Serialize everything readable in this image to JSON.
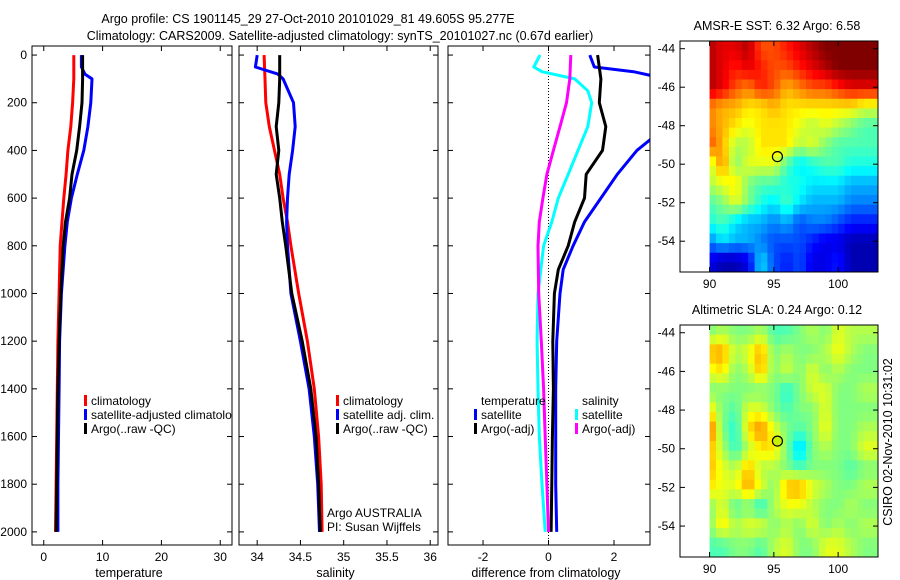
{
  "titles": {
    "line1": "Argo profile: CS 1901145_29 27-Oct-2010 20101029_81 49.605S 95.277E",
    "line2": "Climatology: CARS2009. Satellite-adjusted climatology: synTS_20101027.nc (0.67d earlier)"
  },
  "footer": "CSIRO 02-Nov-2010 10:31:02",
  "colors": {
    "red": "#ff0000",
    "blue": "#0000ff",
    "black": "#000000",
    "cyan": "#00ffff",
    "magenta": "#ff00ff"
  },
  "chart_data": [
    {
      "type": "line",
      "xlabel": "temperature",
      "xlim": [
        -2,
        32
      ],
      "xticks": [
        0,
        10,
        20,
        30
      ],
      "ylim": [
        2055,
        -38
      ],
      "yticks": [
        0,
        200,
        400,
        600,
        800,
        1000,
        1200,
        1400,
        1600,
        1800,
        2000
      ],
      "show_ytick_labels": true,
      "series": [
        {
          "name": "climatology",
          "color": "#ff0000",
          "depth": [
            0,
            100,
            200,
            300,
            400,
            500,
            600,
            700,
            800,
            1000,
            1200,
            1400,
            1600,
            1800,
            2000
          ],
          "values": [
            5.1,
            5.1,
            4.9,
            4.6,
            4.1,
            3.8,
            3.4,
            3.1,
            2.8,
            2.6,
            2.4,
            2.3,
            2.2,
            2.1,
            2.0
          ]
        },
        {
          "name": "satellite-adjusted climatology",
          "color": "#0000ff",
          "depth": [
            0,
            50,
            80,
            100,
            200,
            300,
            400,
            500,
            600,
            700,
            800,
            1000,
            1200,
            1400,
            1600,
            1800,
            2000
          ],
          "values": [
            6.4,
            6.4,
            7.0,
            8.2,
            8.0,
            7.5,
            6.8,
            5.7,
            4.7,
            4.0,
            3.6,
            3.0,
            2.7,
            2.6,
            2.5,
            2.4,
            2.4
          ]
        },
        {
          "name": "Argo(..raw -QC)",
          "color": "#000000",
          "depth": [
            0,
            100,
            200,
            300,
            400,
            500,
            600,
            700,
            800,
            1000,
            1200,
            1400,
            1600,
            1800,
            2000
          ],
          "values": [
            6.6,
            6.6,
            6.5,
            6.1,
            5.6,
            4.8,
            4.4,
            3.7,
            3.3,
            2.9,
            2.6,
            2.4,
            2.3,
            2.2,
            2.1
          ]
        }
      ],
      "legend": {
        "groups": [
          {
            "heading": "",
            "entries": [
              {
                "label": "climatology",
                "color": "#ff0000"
              },
              {
                "label": "satellite-adjusted climatolo",
                "color": "#0000ff"
              },
              {
                "label": "Argo(..raw -QC)",
                "color": "#000000"
              }
            ]
          }
        ]
      },
      "annotations": []
    },
    {
      "type": "line",
      "xlabel": "salinity",
      "xlim": [
        33.79,
        36.09
      ],
      "xticks": [
        34,
        34.5,
        35,
        35.5,
        36
      ],
      "ylim": [
        2055,
        -38
      ],
      "yticks": [
        0,
        200,
        400,
        600,
        800,
        1000,
        1200,
        1400,
        1600,
        1800,
        2000
      ],
      "show_ytick_labels": false,
      "series": [
        {
          "name": "climatology",
          "color": "#ff0000",
          "depth": [
            0,
            100,
            200,
            300,
            400,
            500,
            600,
            700,
            800,
            1000,
            1200,
            1400,
            1600,
            1800,
            2000
          ],
          "values": [
            34.08,
            34.09,
            34.1,
            34.14,
            34.2,
            34.26,
            34.3,
            34.35,
            34.39,
            34.48,
            34.58,
            34.66,
            34.71,
            34.74,
            34.75
          ]
        },
        {
          "name": "satellite adj. clim.",
          "color": "#0000ff",
          "depth": [
            0,
            50,
            80,
            100,
            200,
            300,
            400,
            500,
            600,
            700,
            800,
            1000,
            1200,
            1400,
            1600,
            1800,
            2000
          ],
          "values": [
            34.0,
            33.98,
            34.24,
            34.3,
            34.42,
            34.44,
            34.41,
            34.37,
            34.35,
            34.34,
            34.35,
            34.39,
            34.5,
            34.6,
            34.66,
            34.7,
            34.72
          ]
        },
        {
          "name": "Argo(..raw -QC)",
          "color": "#000000",
          "depth": [
            0,
            100,
            200,
            300,
            400,
            500,
            600,
            700,
            800,
            1000,
            1200,
            1400,
            1600,
            1800,
            2000
          ],
          "values": [
            34.26,
            34.26,
            34.25,
            34.22,
            34.25,
            34.22,
            34.26,
            34.29,
            34.33,
            34.4,
            34.52,
            34.62,
            34.68,
            34.71,
            34.73
          ]
        }
      ],
      "legend": {
        "groups": [
          {
            "heading": "",
            "entries": [
              {
                "label": "climatology",
                "color": "#ff0000"
              },
              {
                "label": "satellite adj. clim.",
                "color": "#0000ff"
              },
              {
                "label": "Argo(..raw -QC)",
                "color": "#000000"
              }
            ]
          }
        ]
      },
      "annotations": [
        "Argo AUSTRALIA",
        "PI: Susan Wijffels"
      ]
    },
    {
      "type": "line",
      "xlabel": "difference from climatology",
      "xlim": [
        -3.07,
        3.1
      ],
      "xticks": [
        -2,
        0,
        2
      ],
      "ylim": [
        2055,
        -38
      ],
      "yticks": [
        0,
        200,
        400,
        600,
        800,
        1000,
        1200,
        1400,
        1600,
        1800,
        2000
      ],
      "show_ytick_labels": false,
      "zero_line": true,
      "series": [
        {
          "name": "temperature satellite",
          "color": "#0000ff",
          "depth": [
            0,
            50,
            70,
            100,
            200,
            300,
            400,
            500,
            600,
            700,
            800,
            900,
            1000,
            1200,
            1400,
            1600,
            1800,
            2000
          ],
          "values": [
            1.26,
            1.4,
            2.6,
            3.6,
            4.0,
            3.6,
            2.7,
            2.1,
            1.6,
            1.1,
            0.75,
            0.45,
            0.35,
            0.25,
            0.22,
            0.22,
            0.22,
            0.25
          ]
        },
        {
          "name": "temperature Argo(-adj)",
          "color": "#000000",
          "depth": [
            0,
            100,
            200,
            300,
            400,
            500,
            600,
            700,
            800,
            900,
            1000,
            1200,
            1400,
            1600,
            1800,
            2000
          ],
          "values": [
            1.5,
            1.6,
            1.55,
            1.75,
            1.65,
            1.15,
            1.1,
            0.8,
            0.6,
            0.3,
            0.18,
            0.13,
            0.15,
            0.12,
            0.1,
            0.08
          ]
        },
        {
          "name": "salinity satellite",
          "color": "#00ffff",
          "depth": [
            0,
            50,
            70,
            100,
            150,
            200,
            300,
            400,
            500,
            600,
            700,
            800,
            1000,
            1200,
            1400,
            1600,
            1800,
            2000
          ],
          "values": [
            -0.26,
            -0.45,
            -0.2,
            0.8,
            1.2,
            1.32,
            1.2,
            0.9,
            0.6,
            0.3,
            0.1,
            -0.15,
            -0.32,
            -0.35,
            -0.32,
            -0.28,
            -0.2,
            -0.1
          ]
        },
        {
          "name": "salinity Argo(-adj)",
          "color": "#ff00ff",
          "depth": [
            0,
            100,
            200,
            300,
            400,
            500,
            600,
            700,
            800,
            1000,
            1200,
            1400,
            1600,
            1800,
            2000
          ],
          "values": [
            0.68,
            0.65,
            0.55,
            0.35,
            0.15,
            -0.05,
            -0.17,
            -0.28,
            -0.32,
            -0.3,
            -0.22,
            -0.15,
            -0.1,
            -0.05,
            0.0
          ]
        }
      ],
      "legend": {
        "groups": [
          {
            "heading": "temperature",
            "entries": [
              {
                "label": "satellite",
                "color": "#0000ff"
              },
              {
                "label": "Argo(-adj)",
                "color": "#000000"
              }
            ]
          },
          {
            "heading": "salinity",
            "entries": [
              {
                "label": "satellite",
                "color": "#00ffff"
              },
              {
                "label": "Argo(-adj)",
                "color": "#ff00ff"
              }
            ]
          }
        ]
      },
      "annotations": []
    },
    {
      "type": "heatmap",
      "title": "AMSR-E SST: 6.32 Argo: 6.58",
      "xlim": [
        87.7,
        103.1
      ],
      "ylim": [
        -55.6,
        -43.6
      ],
      "xticks": [
        90,
        95,
        100
      ],
      "yticks": [
        -44,
        -46,
        -48,
        -50,
        -52,
        -54
      ],
      "colormap": "jet",
      "lon": [
        90,
        91,
        92,
        93,
        94,
        95,
        96,
        97,
        98,
        99,
        100,
        101,
        102
      ],
      "lat": [
        -44,
        -45,
        -46,
        -47,
        -48,
        -49,
        -50,
        -51,
        -52,
        -53,
        -54,
        -55
      ],
      "values_colormap_fraction": [
        [
          0.95,
          0.9,
          0.9,
          0.95,
          0.8,
          0.8,
          0.85,
          0.9,
          0.95,
          1,
          1,
          1,
          1
        ],
        [
          0.95,
          0.9,
          0.85,
          0.9,
          0.85,
          0.8,
          0.8,
          0.85,
          0.9,
          0.95,
          1,
          1,
          1
        ],
        [
          0.95,
          0.9,
          0.8,
          0.75,
          0.85,
          0.8,
          0.7,
          0.75,
          0.8,
          0.8,
          0.85,
          0.9,
          0.9
        ],
        [
          0.75,
          0.7,
          0.7,
          0.65,
          0.65,
          0.7,
          0.65,
          0.65,
          0.65,
          0.65,
          0.65,
          0.65,
          0.6
        ],
        [
          0.75,
          0.7,
          0.65,
          0.6,
          0.65,
          0.65,
          0.65,
          0.6,
          0.55,
          0.6,
          0.55,
          0.5,
          0.45
        ],
        [
          0.8,
          0.7,
          0.55,
          0.55,
          0.65,
          0.65,
          0.65,
          0.55,
          0.6,
          0.5,
          0.45,
          0.45,
          0.45
        ],
        [
          0.55,
          0.75,
          0.5,
          0.6,
          0.6,
          0.6,
          0.45,
          0.35,
          0.4,
          0.45,
          0.45,
          0.4,
          0.4
        ],
        [
          0.55,
          0.6,
          0.65,
          0.5,
          0.45,
          0.45,
          0.4,
          0.4,
          0.35,
          0.35,
          0.35,
          0.3,
          0.3
        ],
        [
          0.45,
          0.5,
          0.6,
          0.5,
          0.4,
          0.35,
          0.45,
          0.35,
          0.3,
          0.3,
          0.3,
          0.25,
          0.25
        ],
        [
          0.4,
          0.45,
          0.35,
          0.3,
          0.3,
          0.25,
          0.3,
          0.2,
          0.25,
          0.25,
          0.2,
          0.15,
          0.15
        ],
        [
          0.25,
          0.35,
          0.3,
          0.3,
          0.25,
          0.2,
          0.2,
          0.2,
          0.15,
          0.1,
          0.1,
          0.05,
          0.05
        ],
        [
          0.1,
          0.05,
          0.05,
          0.1,
          0.35,
          0.2,
          0.15,
          0.2,
          0.1,
          0.1,
          0.15,
          0.05,
          0.05
        ]
      ],
      "marker": {
        "lon": 95.277,
        "lat": -49.605,
        "fill": "none"
      }
    },
    {
      "type": "heatmap",
      "title": "Altimetric SLA: 0.24 Argo: 0.12",
      "xlim": [
        87.7,
        103.1
      ],
      "ylim": [
        -55.6,
        -43.6
      ],
      "xticks": [
        90,
        95,
        100
      ],
      "yticks": [
        -44,
        -46,
        -48,
        -50,
        -52,
        -54
      ],
      "colormap": "jet",
      "lon": [
        90,
        91,
        92,
        93,
        94,
        95,
        96,
        97,
        98,
        99,
        100,
        101,
        102
      ],
      "lat": [
        -44,
        -45,
        -46,
        -47,
        -48,
        -49,
        -50,
        -51,
        -52,
        -53,
        -54,
        -55
      ],
      "values_colormap_fraction": [
        [
          0.5,
          0.55,
          0.5,
          0.5,
          0.55,
          0.45,
          0.45,
          0.5,
          0.55,
          0.5,
          0.6,
          0.55,
          0.55
        ],
        [
          0.7,
          0.72,
          0.55,
          0.6,
          0.72,
          0.5,
          0.55,
          0.5,
          0.5,
          0.55,
          0.62,
          0.55,
          0.5
        ],
        [
          0.6,
          0.65,
          0.5,
          0.55,
          0.7,
          0.5,
          0.58,
          0.5,
          0.6,
          0.5,
          0.55,
          0.5,
          0.5
        ],
        [
          0.5,
          0.5,
          0.5,
          0.5,
          0.5,
          0.5,
          0.4,
          0.5,
          0.58,
          0.6,
          0.5,
          0.5,
          0.55
        ],
        [
          0.65,
          0.5,
          0.45,
          0.6,
          0.6,
          0.5,
          0.45,
          0.5,
          0.5,
          0.6,
          0.5,
          0.5,
          0.5
        ],
        [
          0.8,
          0.5,
          0.4,
          0.65,
          0.75,
          0.6,
          0.5,
          0.45,
          0.5,
          0.62,
          0.5,
          0.5,
          0.55
        ],
        [
          0.7,
          0.55,
          0.42,
          0.55,
          0.65,
          0.65,
          0.5,
          0.3,
          0.5,
          0.55,
          0.5,
          0.5,
          0.6
        ],
        [
          0.7,
          0.6,
          0.55,
          0.7,
          0.55,
          0.55,
          0.5,
          0.45,
          0.5,
          0.5,
          0.5,
          0.45,
          0.5
        ],
        [
          0.65,
          0.6,
          0.6,
          0.72,
          0.6,
          0.5,
          0.7,
          0.72,
          0.6,
          0.55,
          0.5,
          0.5,
          0.55
        ],
        [
          0.5,
          0.6,
          0.45,
          0.5,
          0.4,
          0.55,
          0.6,
          0.6,
          0.55,
          0.5,
          0.5,
          0.55,
          0.5
        ],
        [
          0.5,
          0.65,
          0.55,
          0.6,
          0.6,
          0.5,
          0.55,
          0.5,
          0.6,
          0.5,
          0.55,
          0.5,
          0.55
        ],
        [
          0.45,
          0.45,
          0.5,
          0.5,
          0.45,
          0.55,
          0.6,
          0.5,
          0.5,
          0.6,
          0.6,
          0.55,
          0.5
        ]
      ],
      "marker": {
        "lon": 95.277,
        "lat": -49.605,
        "fill": "#c8f000"
      }
    }
  ]
}
